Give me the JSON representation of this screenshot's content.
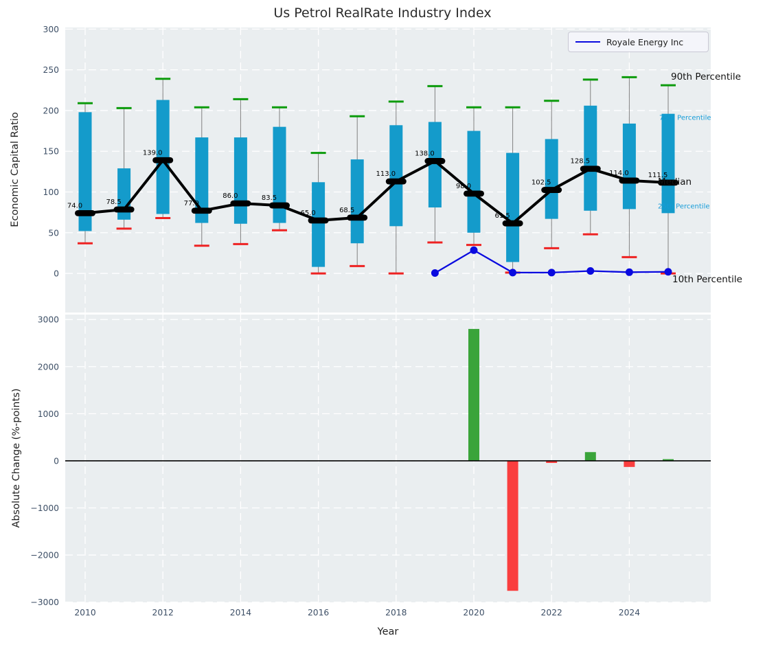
{
  "chart_data": [
    {
      "type": "box",
      "title": "Us Petrol RealRate Industry Index",
      "ylabel": "Economic Capital Ratio",
      "ylim": [
        -48,
        302
      ],
      "yticks": [
        0,
        50,
        100,
        150,
        200,
        250,
        300
      ],
      "xticks": [
        2010,
        2012,
        2014,
        2016,
        2018,
        2020,
        2022,
        2024
      ],
      "grid": true,
      "legend_position": "upper right",
      "years": [
        2010,
        2011,
        2012,
        2013,
        2014,
        2015,
        2016,
        2017,
        2018,
        2019,
        2020,
        2021,
        2022,
        2023,
        2024,
        2025
      ],
      "box": {
        "p10": [
          37,
          55,
          68,
          34,
          36,
          53,
          0,
          9,
          0,
          38,
          35,
          1,
          31,
          48,
          20,
          0
        ],
        "p25": [
          52,
          66,
          73,
          62,
          61,
          62,
          8,
          37,
          58,
          81,
          50,
          14,
          67,
          77,
          79,
          74
        ],
        "median": [
          74,
          78.5,
          139,
          77,
          86,
          83.5,
          65,
          68.5,
          113,
          138,
          98,
          61.5,
          102.5,
          128.5,
          114,
          111.5
        ],
        "p75": [
          198,
          129,
          213,
          167,
          167,
          180,
          112,
          140,
          182,
          186,
          175,
          148,
          165,
          206,
          184,
          196
        ],
        "p90": [
          209,
          203,
          239,
          204,
          214,
          204,
          148,
          193,
          211,
          230,
          204,
          204,
          212,
          238,
          241,
          231
        ]
      },
      "median_labels": [
        "74.0",
        "78.5",
        "139.0",
        "77.0",
        "86.0",
        "83.5",
        "65.0",
        "68.5",
        "113.0",
        "138.0",
        "98.0",
        "61.5",
        "102.5",
        "128.5",
        "114.0",
        "111.5"
      ],
      "series": [
        {
          "name": "Royale Energy Inc",
          "color": "#0a0adf",
          "x": [
            2019,
            2020,
            2021,
            2022,
            2023,
            2024,
            2025
          ],
          "values": [
            0.5,
            28.5,
            1,
            1,
            3,
            1.5,
            2
          ]
        }
      ],
      "annotations": [
        {
          "text": "90th Percentile",
          "level": "p90",
          "color": "#111111"
        },
        {
          "text": "75th Percentile",
          "level": "p75",
          "color": "#169cd8"
        },
        {
          "text": "Median",
          "level": "median",
          "color": "#111111"
        },
        {
          "text": "25th Percentile",
          "level": "p25",
          "color": "#169cd8"
        },
        {
          "text": "10th Percentile",
          "level": "p10",
          "color": "#111111"
        }
      ],
      "colors": {
        "box_fill": "#149bcb",
        "p90_cap": "#0c9b0c",
        "p10_cap": "#ee2222",
        "whisker": "#808080",
        "median_line": "#000000"
      }
    },
    {
      "type": "bar",
      "ylabel": "Absolute Change (%-points)",
      "xlabel": "Year",
      "ylim": [
        -3005,
        3105
      ],
      "yticks": [
        -3000,
        -2000,
        -1000,
        0,
        1000,
        2000,
        3000
      ],
      "xticks": [
        2010,
        2012,
        2014,
        2016,
        2018,
        2020,
        2022,
        2024
      ],
      "grid": true,
      "categories": [
        2010,
        2011,
        2012,
        2013,
        2014,
        2015,
        2016,
        2017,
        2018,
        2019,
        2020,
        2021,
        2022,
        2023,
        2024,
        2025
      ],
      "values": [
        0,
        0,
        0,
        0,
        0,
        0,
        0,
        0,
        0,
        0,
        2800,
        -2760,
        -45,
        185,
        -130,
        35
      ],
      "positive_color": "#3aa43a",
      "negative_color": "#fa3e3e",
      "zero_line_color": "#000000"
    }
  ],
  "style": {
    "axes_background": "#eaeef0",
    "grid_color": "#ffffff",
    "tick_label_color": "#3d4f66"
  }
}
